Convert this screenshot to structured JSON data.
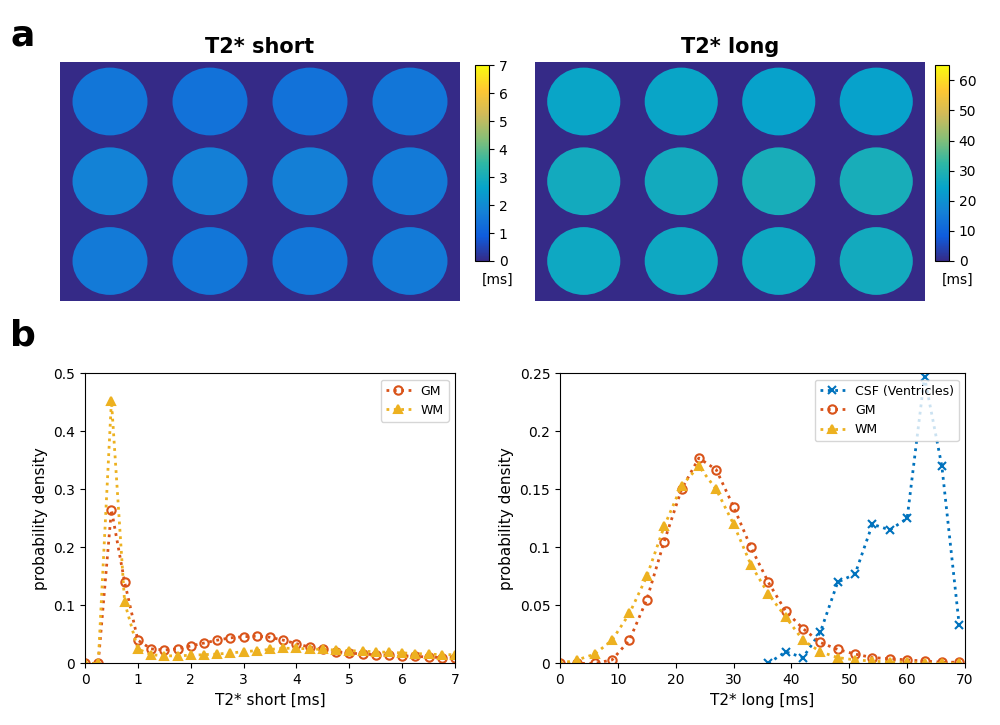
{
  "panel_labels": [
    "a",
    "b"
  ],
  "chart_data": [
    {
      "type": "heatmap",
      "title": "T2* short",
      "cells": [
        [
          1.5,
          1.4,
          1.4,
          1.5
        ],
        [
          1.8,
          1.7,
          1.7,
          1.6
        ],
        [
          1.6,
          1.5,
          1.5,
          1.6
        ]
      ],
      "colorbar": {
        "range": [
          0,
          7
        ],
        "ticks": [
          0,
          1,
          2,
          3,
          4,
          5,
          6,
          7
        ],
        "label": "[ms]"
      },
      "tick_labels": false
    },
    {
      "type": "heatmap",
      "title": "T2* long",
      "cells": [
        [
          25,
          25,
          24,
          24
        ],
        [
          27,
          27,
          28,
          28
        ],
        [
          26,
          26,
          26,
          27
        ]
      ],
      "colorbar": {
        "range": [
          0,
          65
        ],
        "ticks": [
          0,
          10,
          20,
          30,
          40,
          50,
          60
        ],
        "label": "[ms]"
      },
      "tick_labels": false
    },
    {
      "type": "line",
      "x_label": "T2* short [ms]",
      "y_label": "probability density",
      "x": [
        0,
        0.25,
        0.5,
        0.75,
        1.0,
        1.25,
        1.5,
        1.75,
        2.0,
        2.25,
        2.5,
        2.75,
        3.0,
        3.25,
        3.5,
        3.75,
        4.0,
        4.25,
        4.5,
        4.75,
        5.0,
        5.25,
        5.5,
        5.75,
        6.0,
        6.25,
        6.5,
        6.75,
        7.0
      ],
      "series": [
        {
          "name": "GM",
          "color": "#d95319",
          "marker": "circle",
          "line_style": "dotted",
          "values": [
            0,
            0,
            0.265,
            0.14,
            0.04,
            0.025,
            0.023,
            0.025,
            0.03,
            0.035,
            0.04,
            0.044,
            0.046,
            0.047,
            0.045,
            0.04,
            0.034,
            0.028,
            0.024,
            0.02,
            0.018,
            0.016,
            0.015,
            0.014,
            0.013,
            0.012,
            0.011,
            0.01,
            0.01
          ]
        },
        {
          "name": "WM",
          "color": "#edb120",
          "marker": "triangle",
          "line_style": "dotted",
          "values": [
            0,
            0,
            0.453,
            0.105,
            0.025,
            0.015,
            0.013,
            0.013,
            0.014,
            0.015,
            0.016,
            0.018,
            0.02,
            0.022,
            0.024,
            0.026,
            0.026,
            0.025,
            0.024,
            0.023,
            0.022,
            0.021,
            0.02,
            0.019,
            0.018,
            0.017,
            0.016,
            0.015,
            0.015
          ]
        }
      ],
      "xlim": [
        0,
        7
      ],
      "xticks": [
        0,
        1,
        2,
        3,
        4,
        5,
        6,
        7
      ],
      "ylim": [
        0,
        0.5
      ],
      "yticks": [
        0,
        0.1,
        0.2,
        0.3,
        0.4,
        0.5
      ],
      "legend": "upper right",
      "grid": false
    },
    {
      "type": "line",
      "x_label": "T2* long [ms]",
      "y_label": "probability density",
      "x": [
        0,
        3,
        6,
        9,
        12,
        15,
        18,
        21,
        24,
        27,
        30,
        33,
        36,
        39,
        42,
        45,
        48,
        51,
        54,
        57,
        60,
        63,
        66,
        69
      ],
      "series": [
        {
          "name": "CSF (Ventricles)",
          "color": "#0072bd",
          "marker": "x",
          "line_style": "dotted",
          "values": [
            null,
            null,
            null,
            null,
            null,
            null,
            null,
            null,
            null,
            null,
            null,
            null,
            0,
            0.01,
            0.005,
            0.027,
            0.07,
            0.077,
            0.12,
            0.115,
            0.125,
            0.247,
            0.17,
            0.033
          ]
        },
        {
          "name": "GM",
          "color": "#d95319",
          "marker": "circle",
          "line_style": "dotted",
          "values": [
            0,
            0,
            0,
            0.003,
            0.02,
            0.055,
            0.105,
            0.15,
            0.177,
            0.167,
            0.135,
            0.1,
            0.07,
            0.045,
            0.03,
            0.018,
            0.012,
            0.008,
            0.005,
            0.004,
            0.003,
            0.002,
            0.001,
            0.001
          ]
        },
        {
          "name": "WM",
          "color": "#edb120",
          "marker": "triangle",
          "line_style": "dotted",
          "values": [
            0,
            0.003,
            0.008,
            0.02,
            0.043,
            0.075,
            0.118,
            0.153,
            0.17,
            0.15,
            0.12,
            0.085,
            0.06,
            0.04,
            0.02,
            0.01,
            0.005,
            0.003,
            0.002,
            0.001,
            0.001,
            0,
            0,
            0
          ]
        }
      ],
      "xlim": [
        0,
        70
      ],
      "xticks": [
        0,
        10,
        20,
        30,
        40,
        50,
        60,
        70
      ],
      "ylim": [
        0,
        0.25
      ],
      "yticks": [
        0,
        0.05,
        0.1,
        0.15,
        0.2,
        0.25
      ],
      "legend": "upper right",
      "grid": false
    }
  ]
}
